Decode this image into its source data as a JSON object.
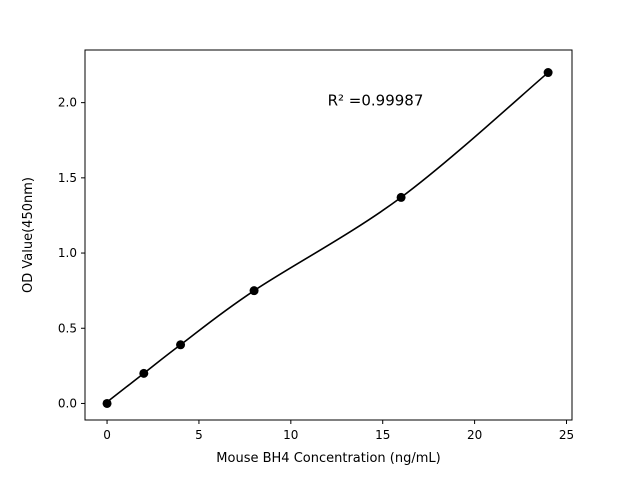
{
  "figure": {
    "background": "#ffffff"
  },
  "chart_data": {
    "type": "scatter",
    "title": "",
    "xlabel": "Mouse BH4 Concentration (ng/mL)",
    "ylabel": "OD Value(450nm)",
    "annotation": {
      "text": "R² =0.99987",
      "x": 12.0,
      "y": 1.98
    },
    "points": {
      "x": [
        0,
        2,
        4,
        8,
        16,
        24
      ],
      "y": [
        0.0,
        0.2,
        0.39,
        0.75,
        1.37,
        2.2
      ]
    },
    "trendline": {
      "x": [
        0,
        2,
        4,
        8,
        16,
        24
      ],
      "y": [
        0.01,
        0.2,
        0.39,
        0.75,
        1.37,
        2.2
      ]
    },
    "xlim": [
      -1.2,
      25.3
    ],
    "ylim": [
      -0.11,
      2.35
    ],
    "xticks": [
      0,
      5,
      10,
      15,
      20,
      25
    ],
    "xtick_labels": [
      "0",
      "5",
      "10",
      "15",
      "20",
      "25"
    ],
    "yticks": [
      0.0,
      0.5,
      1.0,
      1.5,
      2.0
    ],
    "ytick_labels": [
      "0.0",
      "0.5",
      "1.0",
      "1.5",
      "2.0"
    ],
    "grid": false,
    "legend": "none",
    "colors": {
      "marker": "#000000",
      "line": "#000000",
      "axis": "#000000",
      "background": "#ffffff"
    },
    "marker_radius": 4.5,
    "line_width": 1.6
  }
}
